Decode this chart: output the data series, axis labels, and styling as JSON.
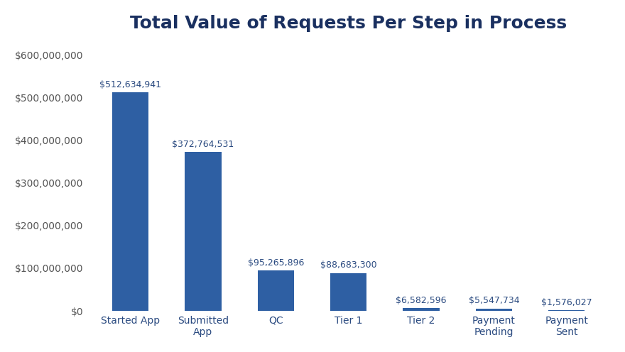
{
  "title": "Total Value of Requests Per Step in Process",
  "categories": [
    "Started App",
    "Submitted\nApp",
    "QC",
    "Tier 1",
    "Tier 2",
    "Payment\nPending",
    "Payment\nSent"
  ],
  "values": [
    512634941,
    372764531,
    95265896,
    88683300,
    6582596,
    5547734,
    1576027
  ],
  "labels": [
    "$512,634,941",
    "$372,764,531",
    "$95,265,896",
    "$88,683,300",
    "$6,582,596",
    "$5,547,734",
    "$1,576,027"
  ],
  "bar_color": "#2E5FA3",
  "background_color": "#ffffff",
  "title_color": "#1a3060",
  "title_fontsize": 18,
  "label_fontsize": 9,
  "tick_fontsize": 10,
  "ytick_color": "#555555",
  "xtick_color": "#2a4a80",
  "ylim": [
    0,
    630000000
  ],
  "yticks": [
    0,
    100000000,
    200000000,
    300000000,
    400000000,
    500000000,
    600000000
  ]
}
